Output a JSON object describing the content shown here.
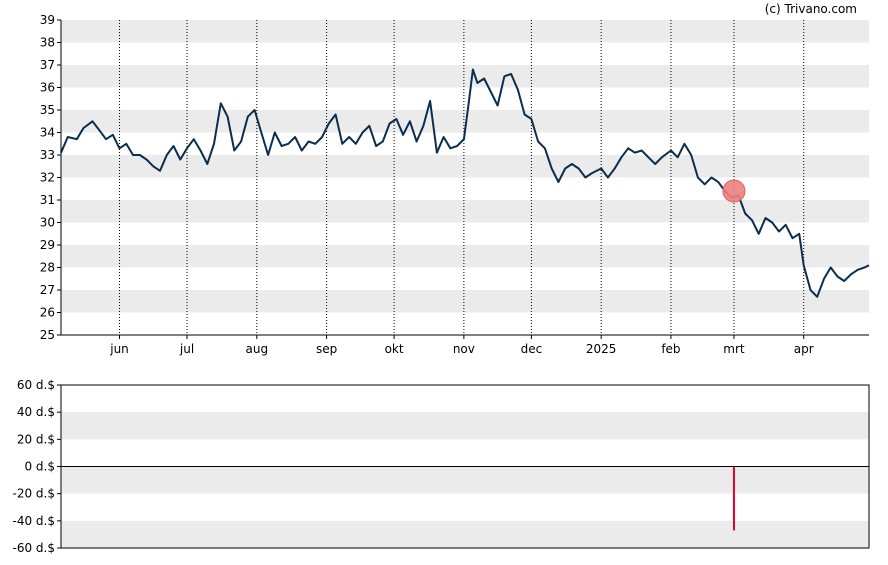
{
  "credit": "(c) Trivano.com",
  "colors": {
    "band": "#ebebeb",
    "line": "#0b2e4f",
    "marker": "#f08080",
    "marker_edge": "#e06060",
    "bar": "#e0002a",
    "axis": "#000000",
    "grid": "#000000"
  },
  "chart_data": [
    {
      "type": "line",
      "x_tick_labels": [
        "jun",
        "jul",
        "aug",
        "sep",
        "okt",
        "nov",
        "dec",
        "2025",
        "feb",
        "mrt",
        "apr"
      ],
      "x_tick_dates": [
        "2024-06-01",
        "2024-07-01",
        "2024-08-01",
        "2024-09-01",
        "2024-10-01",
        "2024-11-01",
        "2024-12-01",
        "2025-01-01",
        "2025-02-01",
        "2025-03-01",
        "2025-04-01"
      ],
      "x_range": [
        "2024-05-06",
        "2025-04-30"
      ],
      "ylim": [
        25,
        39
      ],
      "y_ticks": [
        25,
        26,
        27,
        28,
        29,
        30,
        31,
        32,
        33,
        34,
        35,
        36,
        37,
        38,
        39
      ],
      "grid": "alternating horizontal bands, dotted vertical lines at month ticks",
      "marker": {
        "date": "2025-03-01",
        "value": 31.4
      },
      "series": [
        {
          "x": [
            "2024-05-06",
            "2024-05-09",
            "2024-05-13",
            "2024-05-16",
            "2024-05-20",
            "2024-05-23",
            "2024-05-26",
            "2024-05-29",
            "2024-06-01",
            "2024-06-04",
            "2024-06-07",
            "2024-06-10",
            "2024-06-13",
            "2024-06-16",
            "2024-06-19",
            "2024-06-22",
            "2024-06-25",
            "2024-06-28",
            "2024-07-01",
            "2024-07-04",
            "2024-07-07",
            "2024-07-10",
            "2024-07-13",
            "2024-07-16",
            "2024-07-19",
            "2024-07-22",
            "2024-07-25",
            "2024-07-28",
            "2024-07-31",
            "2024-08-03",
            "2024-08-06",
            "2024-08-09",
            "2024-08-12",
            "2024-08-15",
            "2024-08-18",
            "2024-08-21",
            "2024-08-24",
            "2024-08-27",
            "2024-08-30",
            "2024-09-02",
            "2024-09-05",
            "2024-09-08",
            "2024-09-11",
            "2024-09-14",
            "2024-09-17",
            "2024-09-20",
            "2024-09-23",
            "2024-09-26",
            "2024-09-29",
            "2024-10-02",
            "2024-10-05",
            "2024-10-08",
            "2024-10-11",
            "2024-10-14",
            "2024-10-17",
            "2024-10-20",
            "2024-10-23",
            "2024-10-26",
            "2024-10-29",
            "2024-11-01",
            "2024-11-03",
            "2024-11-05",
            "2024-11-07",
            "2024-11-10",
            "2024-11-13",
            "2024-11-16",
            "2024-11-19",
            "2024-11-22",
            "2024-11-25",
            "2024-11-28",
            "2024-12-01",
            "2024-12-04",
            "2024-12-07",
            "2024-12-10",
            "2024-12-13",
            "2024-12-16",
            "2024-12-19",
            "2024-12-22",
            "2024-12-25",
            "2024-12-28",
            "2025-01-01",
            "2025-01-04",
            "2025-01-07",
            "2025-01-10",
            "2025-01-13",
            "2025-01-16",
            "2025-01-19",
            "2025-01-22",
            "2025-01-25",
            "2025-01-28",
            "2025-02-01",
            "2025-02-04",
            "2025-02-07",
            "2025-02-10",
            "2025-02-13",
            "2025-02-16",
            "2025-02-19",
            "2025-02-22",
            "2025-02-25",
            "2025-02-28",
            "2025-03-03",
            "2025-03-06",
            "2025-03-09",
            "2025-03-12",
            "2025-03-15",
            "2025-03-18",
            "2025-03-21",
            "2025-03-24",
            "2025-03-27",
            "2025-03-30",
            "2025-04-01",
            "2025-04-04",
            "2025-04-07",
            "2025-04-10",
            "2025-04-13",
            "2025-04-16",
            "2025-04-19",
            "2025-04-22",
            "2025-04-25",
            "2025-04-28",
            "2025-04-30"
          ],
          "values": [
            33.1,
            33.8,
            33.7,
            34.2,
            34.5,
            34.1,
            33.7,
            33.9,
            33.3,
            33.5,
            33.0,
            33.0,
            32.8,
            32.5,
            32.3,
            33.0,
            33.4,
            32.8,
            33.3,
            33.7,
            33.2,
            32.6,
            33.5,
            35.3,
            34.7,
            33.2,
            33.6,
            34.7,
            35.0,
            34.0,
            33.0,
            34.0,
            33.4,
            33.5,
            33.8,
            33.2,
            33.6,
            33.5,
            33.8,
            34.4,
            34.8,
            33.5,
            33.8,
            33.5,
            34.0,
            34.3,
            33.4,
            33.6,
            34.4,
            34.6,
            33.9,
            34.5,
            33.6,
            34.3,
            35.4,
            33.1,
            33.8,
            33.3,
            33.4,
            33.7,
            35.2,
            36.8,
            36.2,
            36.4,
            35.8,
            35.2,
            36.5,
            36.6,
            35.9,
            34.8,
            34.6,
            33.6,
            33.3,
            32.4,
            31.8,
            32.4,
            32.6,
            32.4,
            32.0,
            32.2,
            32.4,
            32.0,
            32.4,
            32.9,
            33.3,
            33.1,
            33.2,
            32.9,
            32.6,
            32.9,
            33.2,
            32.9,
            33.5,
            33.0,
            32.0,
            31.7,
            32.0,
            31.8,
            31.4,
            31.1,
            31.2,
            30.4,
            30.1,
            29.5,
            30.2,
            30.0,
            29.6,
            29.9,
            29.3,
            29.5,
            28.1,
            27.0,
            26.7,
            27.5,
            28.0,
            27.6,
            27.4,
            27.7,
            27.9,
            28.0,
            28.1
          ]
        }
      ]
    },
    {
      "type": "bar",
      "ylim": [
        -60,
        60
      ],
      "y_ticks": [
        -60,
        -40,
        -20,
        0,
        20,
        40,
        60
      ],
      "y_tick_labels": [
        "-60 d.$",
        "-40 d.$",
        "-20 d.$",
        "0 d.$",
        "20 d.$",
        "40 d.$",
        "60 d.$"
      ],
      "x_range": [
        "2024-05-06",
        "2025-04-30"
      ],
      "grid": "alternating horizontal bands",
      "bars": [
        {
          "date": "2025-03-01",
          "value": -47
        }
      ]
    }
  ]
}
